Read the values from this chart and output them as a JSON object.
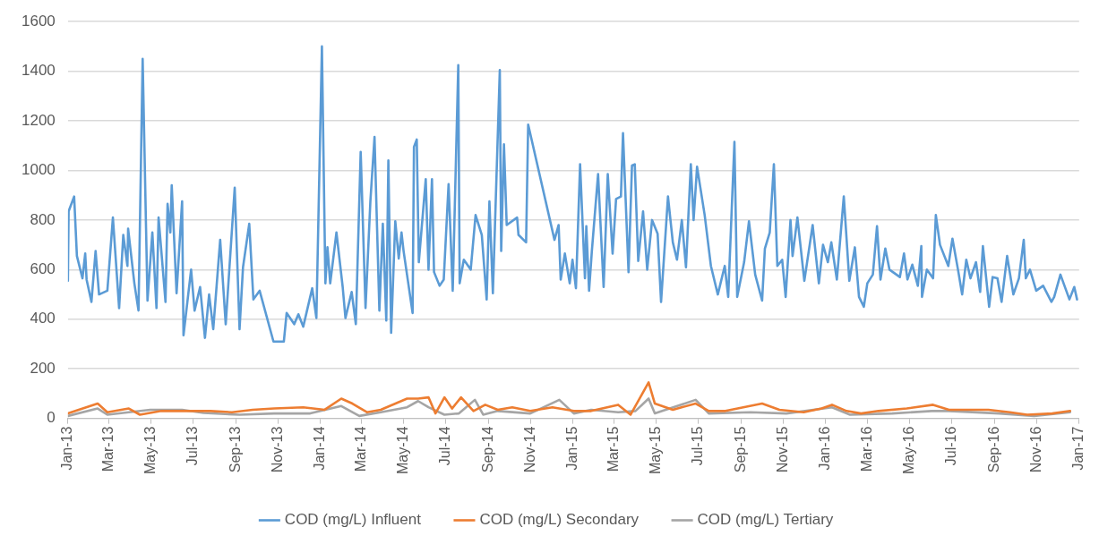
{
  "chart_data": {
    "type": "line",
    "xlim": [
      "2013-01-01",
      "2017-01-01"
    ],
    "xticks": [
      {
        "value": "2013-01",
        "label": "Jan-13"
      },
      {
        "value": "2013-03",
        "label": "Mar-13"
      },
      {
        "value": "2013-05",
        "label": "May-13"
      },
      {
        "value": "2013-07",
        "label": "Jul-13"
      },
      {
        "value": "2013-09",
        "label": "Sep-13"
      },
      {
        "value": "2013-11",
        "label": "Nov-13"
      },
      {
        "value": "2014-01",
        "label": "Jan-14"
      },
      {
        "value": "2014-03",
        "label": "Mar-14"
      },
      {
        "value": "2014-05",
        "label": "May-14"
      },
      {
        "value": "2014-07",
        "label": "Jul-14"
      },
      {
        "value": "2014-09",
        "label": "Sep-14"
      },
      {
        "value": "2014-11",
        "label": "Nov-14"
      },
      {
        "value": "2015-01",
        "label": "Jan-15"
      },
      {
        "value": "2015-03",
        "label": "Mar-15"
      },
      {
        "value": "2015-05",
        "label": "May-15"
      },
      {
        "value": "2015-07",
        "label": "Jul-15"
      },
      {
        "value": "2015-09",
        "label": "Sep-15"
      },
      {
        "value": "2015-11",
        "label": "Nov-15"
      },
      {
        "value": "2016-01",
        "label": "Jan-16"
      },
      {
        "value": "2016-03",
        "label": "Mar-16"
      },
      {
        "value": "2016-05",
        "label": "May-16"
      },
      {
        "value": "2016-07",
        "label": "Jul-16"
      },
      {
        "value": "2016-09",
        "label": "Sep-16"
      },
      {
        "value": "2016-11",
        "label": "Nov-16"
      },
      {
        "value": "2017-01",
        "label": "Jan-17"
      }
    ],
    "ylim": [
      0,
      1600
    ],
    "yticks": [
      0,
      200,
      400,
      600,
      800,
      1000,
      1200,
      1400,
      1600
    ],
    "grid": "y",
    "legend": "bottom",
    "marker": "none",
    "line_style": "solid",
    "series": [
      {
        "name": "COD (mg/L) Influent",
        "color": "#5b9bd5",
        "x": [
          "2013-01-01",
          "2013-01-02",
          "2013-01-10",
          "2013-01-14",
          "2013-01-22",
          "2013-01-26",
          "2013-01-28",
          "2013-02-04",
          "2013-02-10",
          "2013-02-15",
          "2013-02-27",
          "2013-03-07",
          "2013-03-16",
          "2013-03-22",
          "2013-03-28",
          "2013-03-29",
          "2013-04-07",
          "2013-04-13",
          "2013-04-19",
          "2013-04-26",
          "2013-05-03",
          "2013-05-09",
          "2013-05-12",
          "2013-05-22",
          "2013-05-25",
          "2013-05-29",
          "2013-05-31",
          "2013-06-07",
          "2013-06-15",
          "2013-06-17",
          "2013-06-28",
          "2013-07-03",
          "2013-07-11",
          "2013-07-18",
          "2013-07-24",
          "2013-07-30",
          "2013-08-09",
          "2013-08-17",
          "2013-08-30",
          "2013-09-06",
          "2013-09-11",
          "2013-09-20",
          "2013-09-26",
          "2013-10-05",
          "2013-10-25",
          "2013-11-09",
          "2013-11-13",
          "2013-11-24",
          "2013-11-30",
          "2013-12-07",
          "2013-12-20",
          "2013-12-26",
          "2014-01-03",
          "2014-01-08",
          "2014-01-11",
          "2014-01-15",
          "2014-01-24",
          "2014-02-02",
          "2014-02-06",
          "2014-02-15",
          "2014-02-21",
          "2014-02-28",
          "2014-03-07",
          "2014-03-14",
          "2014-03-20",
          "2014-03-27",
          "2014-04-01",
          "2014-04-06",
          "2014-04-09",
          "2014-04-13",
          "2014-04-19",
          "2014-04-24",
          "2014-04-28",
          "2014-05-01",
          "2014-05-14",
          "2014-05-16",
          "2014-05-20",
          "2014-05-23",
          "2014-06-02",
          "2014-06-06",
          "2014-06-11",
          "2014-06-14",
          "2014-06-22",
          "2014-06-28",
          "2014-07-05",
          "2014-07-11",
          "2014-07-19",
          "2014-07-21",
          "2014-07-27",
          "2014-08-06",
          "2014-08-13",
          "2014-08-22",
          "2014-08-29",
          "2014-09-02",
          "2014-09-07",
          "2014-09-17",
          "2014-09-19",
          "2014-09-23",
          "2014-09-27",
          "2014-10-12",
          "2014-10-14",
          "2014-10-25",
          "2014-10-28",
          "2014-12-05",
          "2014-12-11",
          "2014-12-14",
          "2014-12-20",
          "2014-12-27",
          "2014-12-31",
          "2015-01-05",
          "2015-01-11",
          "2015-01-18",
          "2015-01-20",
          "2015-01-24",
          "2015-01-28",
          "2015-02-06",
          "2015-02-14",
          "2015-02-20",
          "2015-02-27",
          "2015-03-04",
          "2015-03-11",
          "2015-03-14",
          "2015-03-22",
          "2015-03-27",
          "2015-03-31",
          "2015-04-05",
          "2015-04-12",
          "2015-04-18",
          "2015-04-25",
          "2015-05-03",
          "2015-05-08",
          "2015-05-18",
          "2015-05-25",
          "2015-05-31",
          "2015-06-07",
          "2015-06-13",
          "2015-06-20",
          "2015-06-24",
          "2015-06-29",
          "2015-07-10",
          "2015-07-19",
          "2015-07-29",
          "2015-08-08",
          "2015-08-13",
          "2015-08-22",
          "2015-08-26",
          "2015-09-05",
          "2015-09-12",
          "2015-09-21",
          "2015-10-01",
          "2015-10-05",
          "2015-10-12",
          "2015-10-18",
          "2015-10-23",
          "2015-10-30",
          "2015-11-04",
          "2015-11-11",
          "2015-11-14",
          "2015-11-21",
          "2015-12-01",
          "2015-12-13",
          "2015-12-22",
          "2015-12-28",
          "2016-01-04",
          "2016-01-09",
          "2016-01-17",
          "2016-01-27",
          "2016-02-04",
          "2016-02-12",
          "2016-02-18",
          "2016-02-25",
          "2016-03-01",
          "2016-03-09",
          "2016-03-15",
          "2016-03-20",
          "2016-03-27",
          "2016-04-02",
          "2016-04-17",
          "2016-04-23",
          "2016-04-28",
          "2016-05-05",
          "2016-05-13",
          "2016-05-18",
          "2016-05-19",
          "2016-05-26",
          "2016-06-04",
          "2016-06-08",
          "2016-06-14",
          "2016-06-26",
          "2016-07-02",
          "2016-07-10",
          "2016-07-16",
          "2016-07-22",
          "2016-07-28",
          "2016-08-05",
          "2016-08-11",
          "2016-08-15",
          "2016-08-24",
          "2016-08-29",
          "2016-09-05",
          "2016-09-11",
          "2016-09-19",
          "2016-09-28",
          "2016-10-06",
          "2016-10-13",
          "2016-10-16",
          "2016-10-22",
          "2016-10-31",
          "2016-11-10",
          "2016-11-22",
          "2016-11-26",
          "2016-12-05",
          "2016-12-18",
          "2016-12-25",
          "2016-12-29"
        ],
        "values": [
          555,
          835,
          895,
          655,
          565,
          665,
          560,
          470,
          675,
          500,
          515,
          810,
          445,
          740,
          615,
          765,
          545,
          435,
          1450,
          475,
          750,
          445,
          810,
          470,
          865,
          750,
          940,
          505,
          875,
          335,
          600,
          435,
          530,
          325,
          500,
          360,
          720,
          380,
          930,
          360,
          610,
          785,
          480,
          515,
          310,
          310,
          425,
          380,
          420,
          370,
          525,
          405,
          1500,
          545,
          690,
          545,
          750,
          530,
          405,
          510,
          380,
          1075,
          445,
          875,
          1135,
          435,
          785,
          395,
          1040,
          345,
          795,
          645,
          750,
          675,
          425,
          1095,
          1125,
          630,
          965,
          600,
          965,
          590,
          535,
          560,
          945,
          515,
          1425,
          545,
          640,
          600,
          820,
          740,
          480,
          875,
          505,
          1405,
          675,
          1105,
          780,
          810,
          740,
          710,
          1185,
          720,
          780,
          560,
          665,
          545,
          640,
          525,
          1025,
          565,
          775,
          515,
          675,
          985,
          530,
          985,
          665,
          885,
          895,
          1150,
          590,
          1020,
          1025,
          635,
          835,
          600,
          800,
          745,
          470,
          895,
          710,
          640,
          800,
          610,
          1025,
          800,
          1015,
          820,
          615,
          500,
          615,
          490,
          1115,
          490,
          630,
          795,
          580,
          475,
          685,
          750,
          1025,
          615,
          640,
          490,
          800,
          655,
          810,
          555,
          780,
          545,
          700,
          630,
          710,
          560,
          895,
          555,
          690,
          490,
          450,
          545,
          580,
          775,
          560,
          685,
          600,
          570,
          665,
          560,
          620,
          535,
          695,
          490,
          600,
          565,
          820,
          700,
          615,
          725,
          600,
          500,
          640,
          565,
          630,
          510,
          695,
          450,
          570,
          565,
          470,
          655,
          500,
          565,
          720,
          565,
          600,
          515,
          535,
          470,
          490,
          580,
          480,
          530,
          480
        ]
      },
      {
        "name": "COD (mg/L) Secondary",
        "color": "#ed7d31",
        "x": [
          "2013-01-01",
          "2013-02-13",
          "2013-02-27",
          "2013-03-30",
          "2013-04-15",
          "2013-05-16",
          "2013-06-25",
          "2013-07-26",
          "2013-08-26",
          "2013-09-25",
          "2013-10-26",
          "2013-12-07",
          "2014-01-07",
          "2014-01-31",
          "2014-02-16",
          "2014-03-09",
          "2014-03-29",
          "2014-05-06",
          "2014-05-22",
          "2014-06-06",
          "2014-06-16",
          "2014-06-29",
          "2014-07-10",
          "2014-07-23",
          "2014-08-10",
          "2014-08-27",
          "2014-09-14",
          "2014-10-05",
          "2014-10-31",
          "2014-12-02",
          "2015-01-02",
          "2015-01-27",
          "2015-03-07",
          "2015-03-25",
          "2015-04-20",
          "2015-04-29",
          "2015-05-25",
          "2015-06-27",
          "2015-07-16",
          "2015-08-09",
          "2015-10-01",
          "2015-10-26",
          "2015-11-30",
          "2015-12-26",
          "2016-01-10",
          "2016-01-31",
          "2016-02-21",
          "2016-03-17",
          "2016-04-27",
          "2016-06-04",
          "2016-06-27",
          "2016-08-02",
          "2016-08-23",
          "2016-09-23",
          "2016-10-18",
          "2016-11-23",
          "2016-12-19"
        ],
        "values": [
          20,
          60,
          25,
          40,
          15,
          30,
          30,
          30,
          25,
          35,
          40,
          45,
          35,
          80,
          60,
          25,
          35,
          80,
          80,
          85,
          20,
          85,
          40,
          85,
          30,
          55,
          35,
          45,
          30,
          45,
          30,
          30,
          55,
          15,
          145,
          60,
          35,
          60,
          30,
          30,
          60,
          35,
          25,
          40,
          55,
          30,
          20,
          30,
          40,
          55,
          35,
          35,
          35,
          25,
          15,
          20,
          30
        ]
      },
      {
        "name": "COD (mg/L) Tertiary",
        "color": "#a5a5a5",
        "x": [
          "2013-01-01",
          "2013-02-13",
          "2013-02-27",
          "2013-04-30",
          "2013-06-15",
          "2013-07-16",
          "2013-09-06",
          "2013-10-26",
          "2013-12-17",
          "2014-01-31",
          "2014-02-26",
          "2014-03-29",
          "2014-05-06",
          "2014-05-22",
          "2014-06-06",
          "2014-06-29",
          "2014-07-20",
          "2014-08-12",
          "2014-08-24",
          "2014-09-14",
          "2014-10-31",
          "2014-12-12",
          "2015-01-02",
          "2015-01-27",
          "2015-03-07",
          "2015-04-01",
          "2015-04-20",
          "2015-04-29",
          "2015-06-27",
          "2015-07-16",
          "2015-09-14",
          "2015-11-05",
          "2016-01-10",
          "2016-02-05",
          "2016-04-06",
          "2016-06-02",
          "2016-06-27",
          "2016-09-08",
          "2016-10-28",
          "2016-12-19"
        ],
        "values": [
          10,
          40,
          15,
          35,
          35,
          22,
          15,
          20,
          20,
          50,
          10,
          25,
          45,
          70,
          45,
          15,
          20,
          75,
          15,
          30,
          20,
          75,
          20,
          35,
          25,
          30,
          80,
          20,
          75,
          20,
          25,
          20,
          45,
          15,
          20,
          30,
          30,
          20,
          10,
          25
        ]
      }
    ]
  }
}
